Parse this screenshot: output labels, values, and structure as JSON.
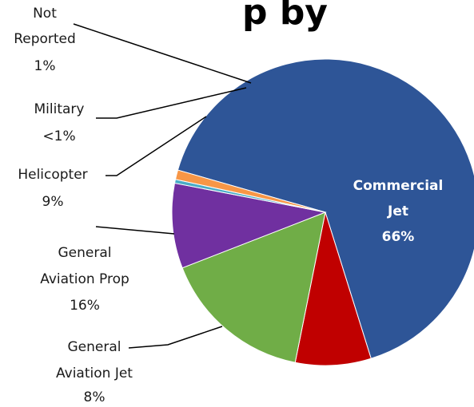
{
  "chart_data": {
    "type": "pie",
    "title_fragment": "p by",
    "slices": [
      {
        "key": "commercial_jet",
        "label_lines": [
          "Commercial",
          "Jet",
          "66%"
        ],
        "value": 66,
        "color": "#2e5597"
      },
      {
        "key": "general_aviation_jet",
        "label_lines": [
          "General",
          "Aviation Jet",
          "8%"
        ],
        "value": 8,
        "color": "#c00000"
      },
      {
        "key": "general_aviation_prop",
        "label_lines": [
          "General",
          "Aviation Prop",
          "16%"
        ],
        "value": 16,
        "color": "#70ad47"
      },
      {
        "key": "helicopter",
        "label_lines": [
          "Helicopter",
          "9%"
        ],
        "value": 9,
        "color": "#7030a0"
      },
      {
        "key": "military",
        "label_lines": [
          "Military",
          "<1%"
        ],
        "value": 0.4,
        "color": "#4aacc6"
      },
      {
        "key": "not_reported",
        "label_lines": [
          "Not",
          "Reported",
          "1%"
        ],
        "value": 1,
        "color": "#f79646"
      }
    ]
  }
}
